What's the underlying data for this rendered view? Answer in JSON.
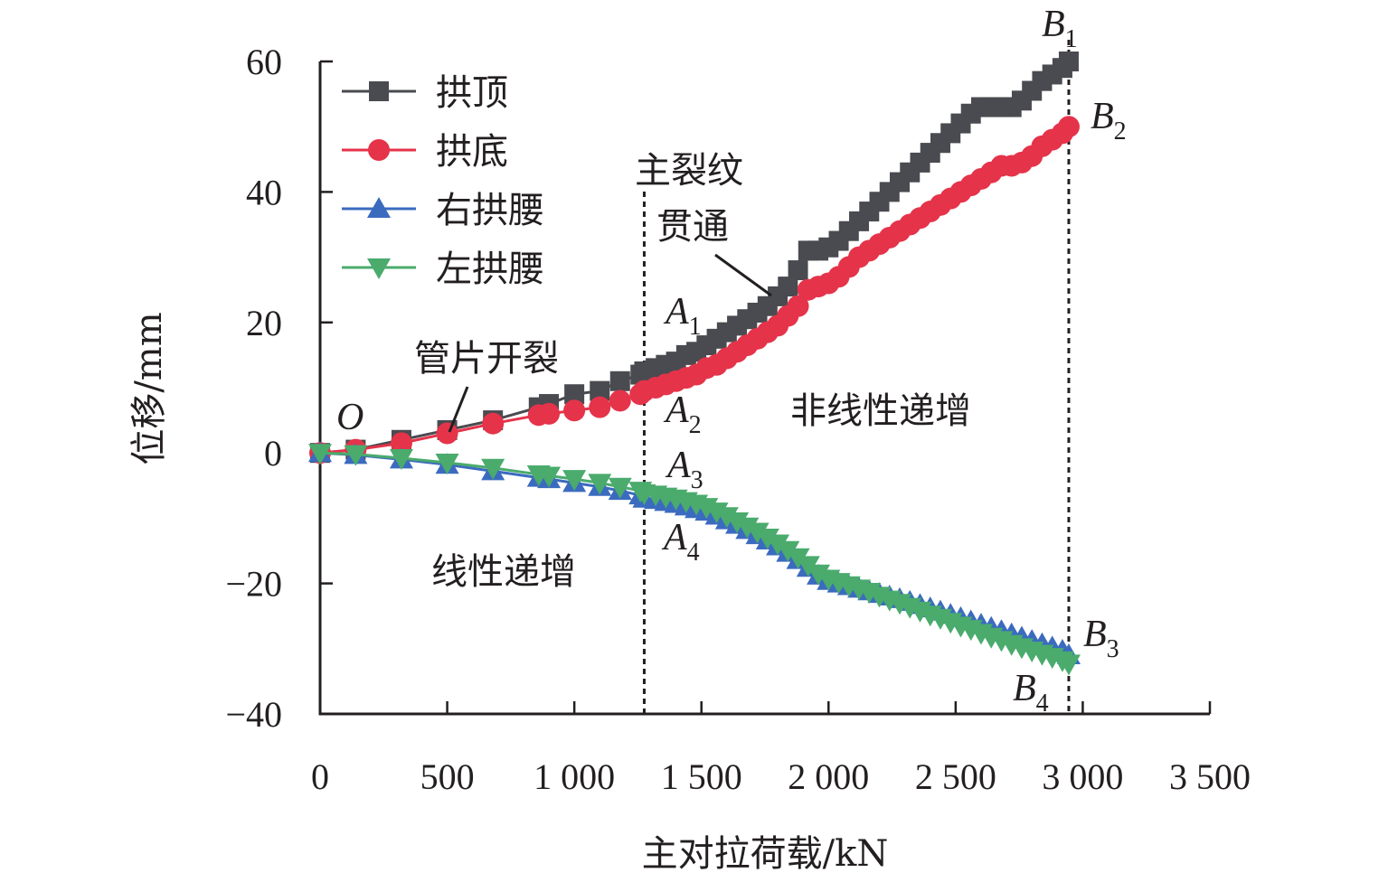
{
  "chart_data": {
    "type": "line",
    "title": "",
    "xlabel": "主对拉荷载/kN",
    "ylabel": "位移/mm",
    "xlim": [
      0,
      3500
    ],
    "ylim": [
      -40,
      60
    ],
    "xticks": [
      0,
      500,
      1000,
      1500,
      2000,
      2500,
      3000,
      3500
    ],
    "xtick_labels": [
      "0",
      "500",
      "1 000",
      "1 500",
      "2 000",
      "2 500",
      "3 000",
      "3 500"
    ],
    "yticks": [
      -40,
      -20,
      0,
      20,
      40,
      60
    ],
    "ytick_labels": [
      "−40",
      "−20",
      "0",
      "20",
      "40",
      "60"
    ],
    "grid": false,
    "legend_position": "top-left",
    "series": [
      {
        "name": "拱顶",
        "color": "#4a4b50",
        "marker": "square",
        "x": [
          0,
          140,
          320,
          500,
          680,
          860,
          900,
          1000,
          1100,
          1180,
          1260,
          1275,
          1320,
          1360,
          1400,
          1440,
          1480,
          1520,
          1560,
          1600,
          1640,
          1680,
          1720,
          1760,
          1800,
          1840,
          1880,
          1920,
          1960,
          2000,
          2040,
          2080,
          2120,
          2160,
          2200,
          2240,
          2280,
          2320,
          2360,
          2400,
          2440,
          2480,
          2520,
          2560,
          2600,
          2640,
          2680,
          2720,
          2760,
          2800,
          2840,
          2880,
          2920,
          2945
        ],
        "y": [
          0,
          0.5,
          2,
          3.5,
          5,
          7,
          7.5,
          9,
          9.5,
          11,
          12,
          12.5,
          13,
          13.5,
          14,
          15,
          15.5,
          16.5,
          17.5,
          18.5,
          19.5,
          20.5,
          21.5,
          22.5,
          24,
          25.5,
          28,
          31,
          31,
          31.5,
          32.5,
          34,
          35.5,
          37,
          38.5,
          40,
          41.5,
          43,
          44.5,
          46,
          47.5,
          49,
          50.5,
          52,
          53,
          53,
          53,
          53,
          54,
          55.5,
          57,
          58,
          59,
          60
        ]
      },
      {
        "name": "拱底",
        "color": "#e5334a",
        "marker": "circle",
        "x": [
          0,
          140,
          320,
          500,
          680,
          860,
          900,
          1000,
          1100,
          1180,
          1260,
          1275,
          1320,
          1360,
          1400,
          1440,
          1480,
          1520,
          1560,
          1600,
          1640,
          1680,
          1720,
          1760,
          1800,
          1840,
          1880,
          1920,
          1960,
          2000,
          2040,
          2080,
          2120,
          2160,
          2200,
          2240,
          2280,
          2320,
          2360,
          2400,
          2440,
          2480,
          2520,
          2560,
          2600,
          2640,
          2680,
          2720,
          2760,
          2800,
          2840,
          2880,
          2920,
          2945
        ],
        "y": [
          0,
          0.5,
          1.5,
          3,
          4.5,
          5.8,
          6,
          6.5,
          7,
          8,
          9,
          9.5,
          10,
          10.5,
          11,
          11.5,
          12,
          13,
          13.5,
          14.5,
          15.5,
          16.5,
          17.5,
          18.5,
          19.5,
          21,
          22.5,
          25,
          25.5,
          26,
          27,
          28.5,
          30,
          31,
          32,
          33,
          34,
          35,
          36,
          37,
          38,
          39,
          40,
          41,
          42,
          43,
          44,
          44,
          44.5,
          45.5,
          47,
          48,
          49,
          50
        ]
      },
      {
        "name": "右拱腰",
        "color": "#3b6bbf",
        "marker": "triangle-up",
        "x": [
          0,
          140,
          320,
          500,
          680,
          860,
          900,
          1000,
          1100,
          1180,
          1260,
          1275,
          1320,
          1360,
          1400,
          1440,
          1480,
          1520,
          1560,
          1600,
          1640,
          1680,
          1720,
          1760,
          1800,
          1840,
          1880,
          1920,
          1960,
          2000,
          2040,
          2080,
          2120,
          2160,
          2200,
          2240,
          2280,
          2320,
          2360,
          2400,
          2440,
          2480,
          2520,
          2560,
          2600,
          2640,
          2680,
          2720,
          2760,
          2800,
          2840,
          2880,
          2920,
          2945
        ],
        "y": [
          0,
          -0.3,
          -1,
          -1.8,
          -2.8,
          -3.8,
          -4,
          -4.6,
          -5.2,
          -5.8,
          -6.5,
          -7,
          -7.2,
          -7.5,
          -7.8,
          -8.2,
          -8.6,
          -9,
          -9.6,
          -10.3,
          -11,
          -11.8,
          -12.6,
          -13.4,
          -14.3,
          -15.3,
          -16.4,
          -17.6,
          -18.8,
          -19.6,
          -20,
          -20.4,
          -20.8,
          -21.2,
          -21.6,
          -22,
          -22.4,
          -22.8,
          -23.3,
          -23.8,
          -24.3,
          -24.8,
          -25.3,
          -25.8,
          -26.3,
          -26.8,
          -27.3,
          -27.8,
          -28.3,
          -28.8,
          -29.3,
          -29.8,
          -30.3,
          -31
        ]
      },
      {
        "name": "左拱腰",
        "color": "#4aab6d",
        "marker": "triangle-down",
        "x": [
          0,
          140,
          320,
          500,
          680,
          860,
          900,
          1000,
          1100,
          1180,
          1260,
          1275,
          1320,
          1360,
          1400,
          1440,
          1480,
          1520,
          1560,
          1600,
          1640,
          1680,
          1720,
          1760,
          1800,
          1840,
          1880,
          1920,
          1960,
          2000,
          2040,
          2080,
          2120,
          2160,
          2200,
          2240,
          2280,
          2320,
          2360,
          2400,
          2440,
          2480,
          2520,
          2560,
          2600,
          2640,
          2680,
          2720,
          2760,
          2800,
          2840,
          2880,
          2920,
          2945
        ],
        "y": [
          0,
          -0.2,
          -0.8,
          -1.5,
          -2.3,
          -3.3,
          -3.5,
          -4,
          -4.6,
          -5.2,
          -5.8,
          -6.2,
          -6.4,
          -6.7,
          -7,
          -7.4,
          -7.8,
          -8.3,
          -9,
          -9.7,
          -10.5,
          -11.3,
          -12.1,
          -13,
          -13.9,
          -14.9,
          -16,
          -17.2,
          -18.5,
          -19.3,
          -19.8,
          -20.3,
          -20.8,
          -21.3,
          -21.9,
          -22.5,
          -23,
          -23.6,
          -24.2,
          -24.8,
          -25.3,
          -25.9,
          -26.5,
          -27,
          -27.6,
          -28.2,
          -28.7,
          -29.3,
          -29.8,
          -30.3,
          -30.8,
          -31.3,
          -31.8,
          -32.3
        ]
      }
    ],
    "vlines": [
      {
        "x": 1275,
        "style": "dotted"
      },
      {
        "x": 2945,
        "style": "dotted"
      }
    ],
    "annotations": [
      {
        "text": "管片开裂",
        "x": 500,
        "y": 3
      },
      {
        "text_line1": "主裂纹",
        "text_line2": "贯通",
        "x": 1800,
        "y": 24
      },
      {
        "text": "线性递增",
        "x": 800,
        "y": -18
      },
      {
        "text": "非线性递增",
        "x": 2300,
        "y": 7
      }
    ],
    "point_labels": [
      {
        "main": "O",
        "sub": ""
      },
      {
        "main": "A",
        "sub": "1"
      },
      {
        "main": "A",
        "sub": "2"
      },
      {
        "main": "A",
        "sub": "3"
      },
      {
        "main": "A",
        "sub": "4"
      },
      {
        "main": "B",
        "sub": "1"
      },
      {
        "main": "B",
        "sub": "2"
      },
      {
        "main": "B",
        "sub": "3"
      },
      {
        "main": "B",
        "sub": "4"
      }
    ]
  }
}
